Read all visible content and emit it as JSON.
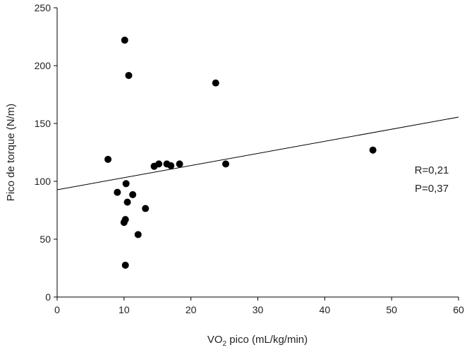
{
  "chart_data": {
    "type": "scatter",
    "title": "",
    "xlabel_prefix": "VO",
    "xlabel_sub": "2",
    "xlabel_suffix": " pico (mL/kg/min)",
    "ylabel": "Pico de torque (N/m)",
    "xlim": [
      0,
      60
    ],
    "ylim": [
      0,
      250
    ],
    "xticks": [
      0,
      10,
      20,
      30,
      40,
      50,
      60
    ],
    "yticks": [
      0,
      50,
      100,
      150,
      200,
      250
    ],
    "grid": false,
    "points": [
      {
        "x": 10.1,
        "y": 222
      },
      {
        "x": 10.7,
        "y": 191.5
      },
      {
        "x": 23.7,
        "y": 185
      },
      {
        "x": 7.6,
        "y": 119
      },
      {
        "x": 47.2,
        "y": 127
      },
      {
        "x": 10.3,
        "y": 98
      },
      {
        "x": 9.0,
        "y": 90.5
      },
      {
        "x": 11.3,
        "y": 88.5
      },
      {
        "x": 10.5,
        "y": 82
      },
      {
        "x": 13.2,
        "y": 76.5
      },
      {
        "x": 10.2,
        "y": 67
      },
      {
        "x": 10.0,
        "y": 64.5
      },
      {
        "x": 12.1,
        "y": 54
      },
      {
        "x": 10.2,
        "y": 27.5
      },
      {
        "x": 14.5,
        "y": 113
      },
      {
        "x": 15.2,
        "y": 115
      },
      {
        "x": 16.4,
        "y": 115
      },
      {
        "x": 17.0,
        "y": 113.5
      },
      {
        "x": 18.3,
        "y": 115
      },
      {
        "x": 25.2,
        "y": 115
      }
    ],
    "regression_line": {
      "x": [
        0,
        60
      ],
      "y": [
        92.7,
        155.5
      ]
    },
    "annotations": [
      "R=0,21",
      "P=0,37"
    ]
  }
}
